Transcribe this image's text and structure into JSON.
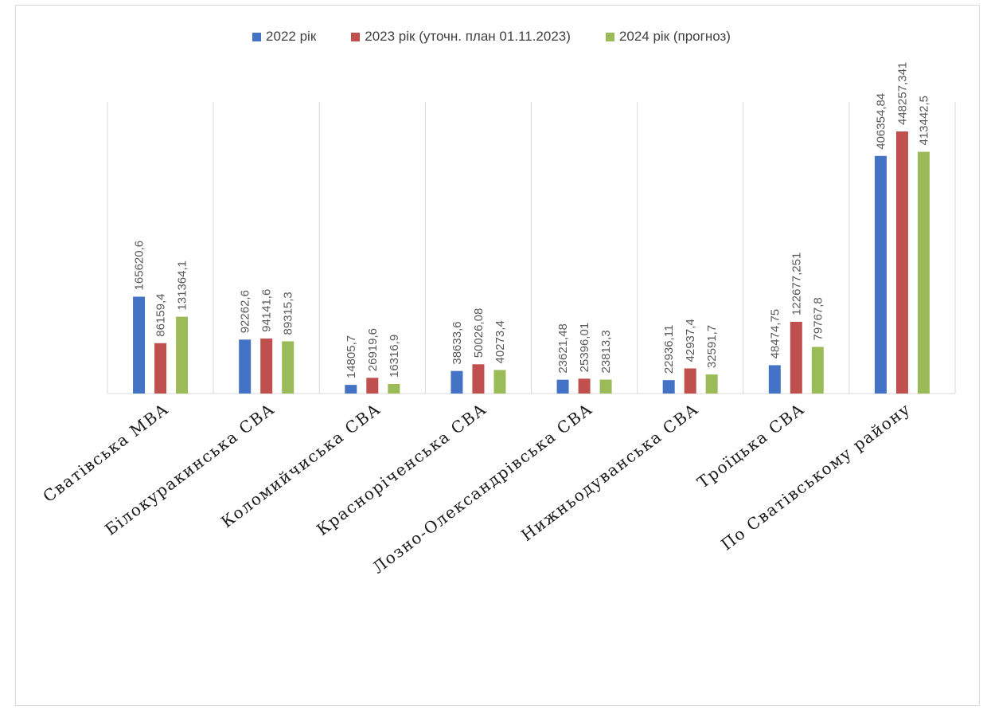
{
  "chart_data": {
    "type": "bar",
    "categories": [
      "Сватівська МВА",
      "Білокуракинська СВА",
      "Коломийчиська СВА",
      "Красноріченська СВА",
      "Лозно-Олександрівська СВА",
      "Нижньодуванська СВА",
      "Троїцька СВА",
      "По Сватівському району"
    ],
    "series": [
      {
        "name": "2022 рік",
        "color": "#4472c4",
        "values": [
          165620.6,
          92262.6,
          14805.7,
          38633.6,
          23621.48,
          22936.11,
          48474.75,
          406354.84
        ],
        "labels": [
          "165620,6",
          "92262,6",
          "14805,7",
          "38633,6",
          "23621,48",
          "22936,11",
          "48474,75",
          "406354,84"
        ]
      },
      {
        "name": "2023 рік (уточн. план 01.11.2023)",
        "color": "#c0504d",
        "values": [
          86159.4,
          94141.6,
          26919.6,
          50026.08,
          25396.01,
          42937.4,
          122677.251,
          448257.341
        ],
        "labels": [
          "86159,4",
          "94141,6",
          "26919,6",
          "50026,08",
          "25396,01",
          "42937,4",
          "122677,251",
          "448257,341"
        ]
      },
      {
        "name": "2024 рік (прогноз)",
        "color": "#9bbb59",
        "values": [
          131364.1,
          89315.3,
          16316.9,
          40273.4,
          23813.3,
          32591.7,
          79767.8,
          413442.5
        ],
        "labels": [
          "131364,1",
          "89315,3",
          "16316,9",
          "40273,4",
          "23813,3",
          "32591,7",
          "79767,8",
          "413442,5"
        ]
      }
    ],
    "ylim": [
      0,
      500000
    ],
    "grid": "vertical category separators",
    "legend": "top-center",
    "data_labels": "rotated vertical above bars"
  }
}
